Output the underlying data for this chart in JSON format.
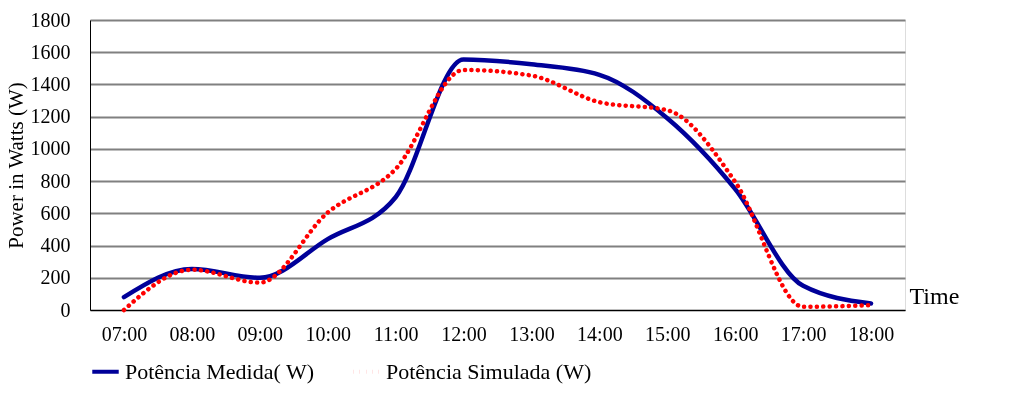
{
  "chart_data": {
    "type": "line",
    "xlabel": "Time",
    "ylabel": "Power in Watts (W)",
    "categories": [
      "07:00",
      "08:00",
      "09:00",
      "10:00",
      "11:00",
      "12:00",
      "13:00",
      "14:00",
      "15:00",
      "16:00",
      "17:00",
      "18:00"
    ],
    "series": [
      {
        "name": "Potência Medida( W)",
        "color": "#000099",
        "line_style": "solid",
        "values": [
          80,
          255,
          200,
          440,
          700,
          1555,
          1525,
          1460,
          1190,
          750,
          150,
          40
        ]
      },
      {
        "name": "Potência Simulada (W)",
        "color": "#ff0000",
        "line_style": "dotted",
        "values": [
          0,
          250,
          170,
          605,
          875,
          1490,
          1455,
          1290,
          1240,
          795,
          20,
          30
        ]
      }
    ],
    "ylim": [
      0,
      1800
    ],
    "yticks": [
      0,
      200,
      400,
      600,
      800,
      1000,
      1200,
      1400,
      1600,
      1800
    ],
    "grid": "y",
    "legend": "bottom",
    "marker": "none"
  }
}
